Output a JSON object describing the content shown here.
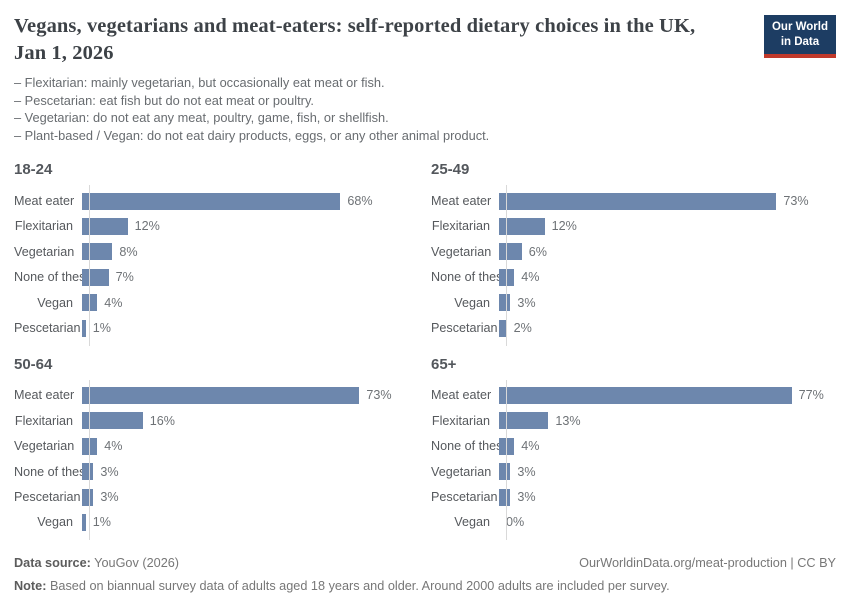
{
  "header": {
    "title": "Vegans, vegetarians and meat-eaters: self-reported dietary choices in the UK, Jan 1, 2026",
    "logo": {
      "line1": "Our World",
      "line2": "in Data",
      "bg_color": "#1d3d63",
      "accent_color": "#c0392b"
    }
  },
  "subtitle_lines": [
    "– Flexitarian: mainly vegetarian, but occasionally eat meat or fish.",
    "– Pescetarian: eat fish but do not eat meat or poultry.",
    "– Vegetarian: do not eat any meat, poultry, game, fish, or shellfish.",
    "– Plant-based / Vegan: do not eat dairy products, eggs, or any other animal product."
  ],
  "chart_data": {
    "type": "bar",
    "orientation": "horizontal",
    "value_unit": "%",
    "xlim": [
      0,
      78
    ],
    "grid": false,
    "legend": "none",
    "bar_color": "#6d87ad",
    "axis_color": "#d9d9d9",
    "panels": [
      {
        "title": "18-24",
        "categories": [
          "Meat eater",
          "Flexitarian",
          "Vegetarian",
          "None of these",
          "Vegan",
          "Pescetarian"
        ],
        "values": [
          68,
          12,
          8,
          7,
          4,
          1
        ]
      },
      {
        "title": "25-49",
        "categories": [
          "Meat eater",
          "Flexitarian",
          "Vegetarian",
          "None of these",
          "Vegan",
          "Pescetarian"
        ],
        "values": [
          73,
          12,
          6,
          4,
          3,
          2
        ]
      },
      {
        "title": "50-64",
        "categories": [
          "Meat eater",
          "Flexitarian",
          "Vegetarian",
          "None of these",
          "Pescetarian",
          "Vegan"
        ],
        "values": [
          73,
          16,
          4,
          3,
          3,
          1
        ]
      },
      {
        "title": "65+",
        "categories": [
          "Meat eater",
          "Flexitarian",
          "None of these",
          "Vegetarian",
          "Pescetarian",
          "Vegan"
        ],
        "values": [
          77,
          13,
          4,
          3,
          3,
          0
        ]
      }
    ]
  },
  "footer": {
    "datasource_label": "Data source:",
    "datasource_value": " YouGov (2026)",
    "citation": "OurWorldinData.org/meat-production | CC BY",
    "note_label": "Note:",
    "note_value": " Based on biannual survey data of adults aged 18 years and older. Around 2000 adults are included per survey."
  }
}
